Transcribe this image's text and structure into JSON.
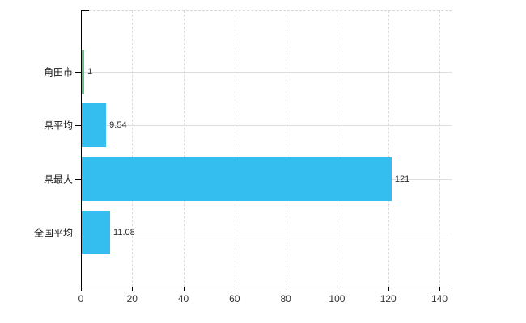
{
  "chart_data": {
    "type": "bar",
    "orientation": "horizontal",
    "title": "",
    "xlabel": "",
    "ylabel": "",
    "categories": [
      "角田市",
      "県平均",
      "県最大",
      "全国平均"
    ],
    "values": [
      1,
      9.54,
      121,
      11.08
    ],
    "value_labels": [
      "1",
      "9.54",
      "121",
      "11.08"
    ],
    "bar_colors": [
      "#61c584",
      "#34beef",
      "#34beef",
      "#34beef"
    ],
    "x_ticks": [
      0,
      20,
      40,
      60,
      80,
      100,
      120,
      140
    ],
    "x_tick_labels": [
      "0",
      "20",
      "40",
      "60",
      "80",
      "100",
      "120",
      "140"
    ],
    "xlim": [
      0,
      140
    ],
    "grid": true,
    "legend": "none",
    "colors": {
      "bar_default": "#34beef",
      "bar_highlight": "#61c584",
      "grid": "#d9dcd9",
      "axis": "#000000",
      "label_text": "#1a1a1a",
      "value_text": "#2b2b2b",
      "tick_text": "#333333",
      "background": "#ffffff"
    }
  }
}
